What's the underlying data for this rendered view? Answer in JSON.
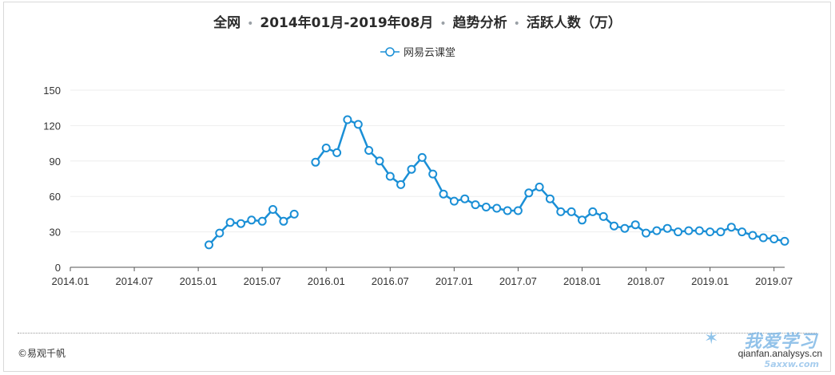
{
  "header": {
    "segments": [
      "全网",
      "2014年01月-2019年08月",
      "趋势分析",
      "活跃人数（万）"
    ],
    "separator": "•"
  },
  "legend": {
    "series_name": "网易云课堂"
  },
  "footer": {
    "copyright": "©易观千帆",
    "watermark_logo": "我爱学习",
    "watermark_url": "qianfan.analysys.cn",
    "watermark_domain": "5axxw.com"
  },
  "colors": {
    "line": "#1a8fd6",
    "grid": "#eeeeee",
    "axis": "#555555",
    "point_fill": "#ffffff"
  },
  "chart_data": {
    "type": "line",
    "title": "全网 · 2014年01月-2019年08月 · 趋势分析 · 活跃人数（万）",
    "xlabel": "",
    "ylabel": "",
    "ylim": [
      0,
      150
    ],
    "yticks": [
      0,
      30,
      60,
      90,
      120,
      150
    ],
    "x_range": [
      "2014-01",
      "2019-08"
    ],
    "xticks": [
      "2014.01",
      "2014.07",
      "2015.01",
      "2015.07",
      "2016.01",
      "2016.07",
      "2017.01",
      "2017.07",
      "2018.01",
      "2018.07",
      "2019.01",
      "2019.07"
    ],
    "grid": true,
    "legend_position": "top-center",
    "series": [
      {
        "name": "网易云课堂",
        "points": [
          [
            "2015-02",
            19
          ],
          [
            "2015-03",
            29
          ],
          [
            "2015-04",
            38
          ],
          [
            "2015-05",
            37
          ],
          [
            "2015-06",
            40
          ],
          [
            "2015-07",
            39
          ],
          [
            "2015-08",
            49
          ],
          [
            "2015-09",
            39
          ],
          [
            "2015-10",
            45
          ],
          [
            "2015-12",
            89
          ],
          [
            "2016-01",
            101
          ],
          [
            "2016-02",
            97
          ],
          [
            "2016-03",
            125
          ],
          [
            "2016-04",
            121
          ],
          [
            "2016-05",
            99
          ],
          [
            "2016-06",
            90
          ],
          [
            "2016-07",
            77
          ],
          [
            "2016-08",
            70
          ],
          [
            "2016-09",
            83
          ],
          [
            "2016-10",
            93
          ],
          [
            "2016-11",
            79
          ],
          [
            "2016-12",
            62
          ],
          [
            "2017-01",
            56
          ],
          [
            "2017-02",
            58
          ],
          [
            "2017-03",
            53
          ],
          [
            "2017-04",
            51
          ],
          [
            "2017-05",
            50
          ],
          [
            "2017-06",
            48
          ],
          [
            "2017-07",
            48
          ],
          [
            "2017-08",
            63
          ],
          [
            "2017-09",
            68
          ],
          [
            "2017-10",
            58
          ],
          [
            "2017-11",
            47
          ],
          [
            "2017-12",
            47
          ],
          [
            "2018-01",
            40
          ],
          [
            "2018-02",
            47
          ],
          [
            "2018-03",
            43
          ],
          [
            "2018-04",
            35
          ],
          [
            "2018-05",
            33
          ],
          [
            "2018-06",
            36
          ],
          [
            "2018-07",
            29
          ],
          [
            "2018-08",
            31
          ],
          [
            "2018-09",
            33
          ],
          [
            "2018-10",
            30
          ],
          [
            "2018-11",
            31
          ],
          [
            "2018-12",
            31
          ],
          [
            "2019-01",
            30
          ],
          [
            "2019-02",
            30
          ],
          [
            "2019-03",
            34
          ],
          [
            "2019-04",
            30
          ],
          [
            "2019-05",
            27
          ],
          [
            "2019-06",
            25
          ],
          [
            "2019-07",
            24
          ],
          [
            "2019-08",
            22
          ]
        ]
      }
    ]
  }
}
